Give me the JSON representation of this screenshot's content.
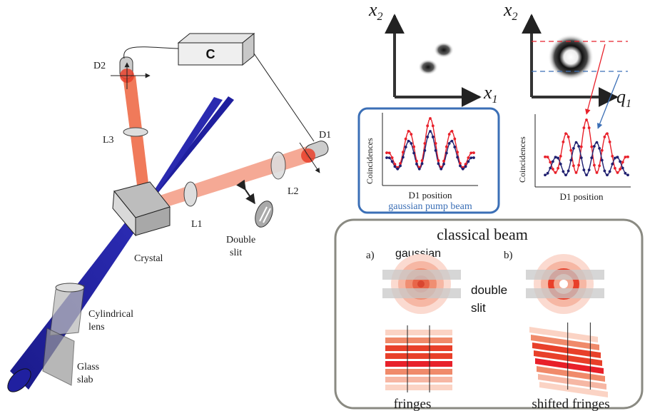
{
  "setup": {
    "correlator": "C",
    "detector1": "D1",
    "detector2": "D2",
    "lens1": "L1",
    "lens2": "L2",
    "lens3": "L3",
    "crystal": "Crystal",
    "double_slit": [
      "Double",
      "slit"
    ],
    "cylindrical_lens": [
      "Cylindrical",
      "lens"
    ],
    "glass_slab": [
      "Glass",
      "slab"
    ]
  },
  "correlation_maps": {
    "left": {
      "y_label": "x",
      "y_sub": "2",
      "x_label": "x",
      "x_sub": "1"
    },
    "right": {
      "y_label": "x",
      "y_sub": "2",
      "x_label": "q",
      "x_sub": "1"
    }
  },
  "plots": {
    "left": {
      "ylabel": "Coincidences",
      "xlabel": "D1 position",
      "caption": "gaussian pump beam"
    },
    "right": {
      "ylabel": "Coincidences",
      "xlabel": "D1 position"
    }
  },
  "classical_box": {
    "title": "classical beam",
    "panel_a": "a)",
    "panel_b": "b)",
    "gaussian": "gaussian",
    "double_slit": [
      "double",
      "slit"
    ],
    "fringes": "fringes",
    "shifted_fringes": "shifted fringes"
  },
  "colors": {
    "pump_blue": "#1f1f9e",
    "beam_orange": "#f07a5a",
    "series_red": "#e8202a",
    "series_blue": "#202070",
    "frame_blue": "#3b6fb6",
    "frame_gray": "#8a8a82"
  }
}
